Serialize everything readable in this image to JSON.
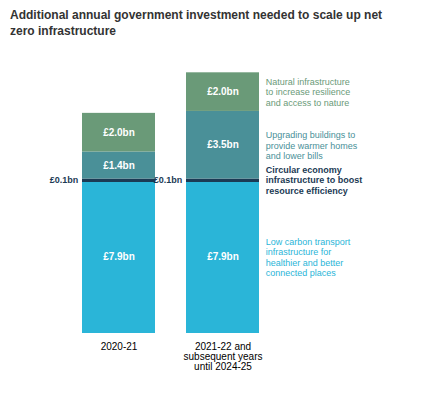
{
  "chart_data": {
    "type": "bar",
    "stacked": true,
    "title": "Additional annual government investment needed to scale up net\nzero infrastructure",
    "categories": [
      "2020-21",
      "2021-22 and\nsubsequent years\nuntil 2024-25"
    ],
    "series": [
      {
        "color": "#2ab5d8",
        "values": [
          7.9,
          7.9
        ],
        "value_labels": [
          "£7.9bn",
          "£7.9bn"
        ]
      },
      {
        "color": "#1b3a54",
        "values": [
          0.1,
          0.1
        ],
        "value_labels": [
          "£0.1bn",
          "£0.1bn"
        ]
      },
      {
        "color": "#4a9098",
        "values": [
          1.4,
          3.5
        ],
        "value_labels": [
          "£1.4bn",
          "£3.5bn"
        ]
      },
      {
        "color": "#6a9a78",
        "values": [
          2.0,
          2.0
        ],
        "value_labels": [
          "£2.0bn",
          "£2.0bn"
        ]
      }
    ],
    "annotations": [
      {
        "text": "Natural infrastructure\nto increase resilience\nand access to nature",
        "color": "#6a9a78",
        "series": 3
      },
      {
        "text": "Upgrading buildings to\nprovide warmer homes\nand lower bills",
        "color": "#4a9098",
        "series": 2
      },
      {
        "text": "Circular economy\ninfrastructure to boost\nresource efficiency",
        "color": "#1b3a54",
        "series": 1
      },
      {
        "text": "Low carbon transport\ninfrastructure for\nhealthier and better\nconnected places",
        "color": "#2ab5d8",
        "series": 0
      }
    ],
    "ylim": [
      0,
      14.5
    ],
    "grid": false,
    "data_labels": true,
    "tick_labels": "x"
  }
}
